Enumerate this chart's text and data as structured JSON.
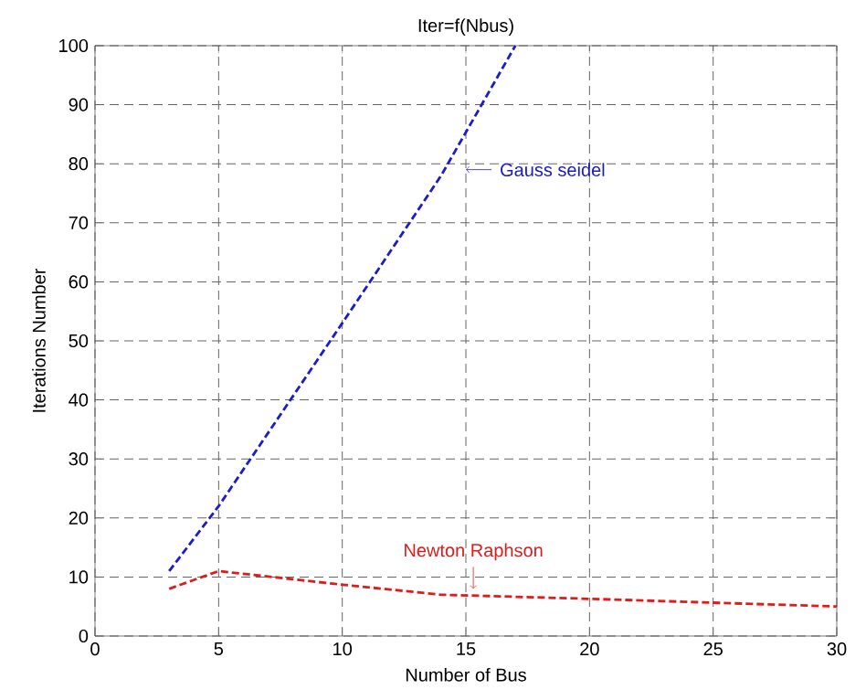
{
  "chart_data": {
    "type": "line",
    "title": "Iter=f(Nbus)",
    "xlabel": "Number of Bus",
    "ylabel": "Iterations Number",
    "xlim": [
      0,
      30
    ],
    "ylim": [
      0,
      100
    ],
    "xticks": [
      0,
      5,
      10,
      15,
      20,
      25,
      30
    ],
    "yticks": [
      0,
      10,
      20,
      30,
      40,
      50,
      60,
      70,
      80,
      90,
      100
    ],
    "grid": true,
    "line_style": "dashed",
    "marker": "none",
    "series": [
      {
        "color": "#1c1cc8",
        "x": [
          3,
          5,
          10,
          14,
          17
        ],
        "values": [
          11,
          22,
          53,
          78,
          100
        ]
      },
      {
        "color": "#dd1c1c",
        "x": [
          3,
          5,
          10,
          14,
          20,
          30
        ],
        "values": [
          8,
          11,
          8.7,
          7,
          6.3,
          5
        ]
      }
    ],
    "annotations": [
      {
        "text": "Gauss seidel",
        "x": 15,
        "y": 79
      },
      {
        "text": "Newton Raphson",
        "x": 15.3,
        "y": 8
      }
    ]
  }
}
